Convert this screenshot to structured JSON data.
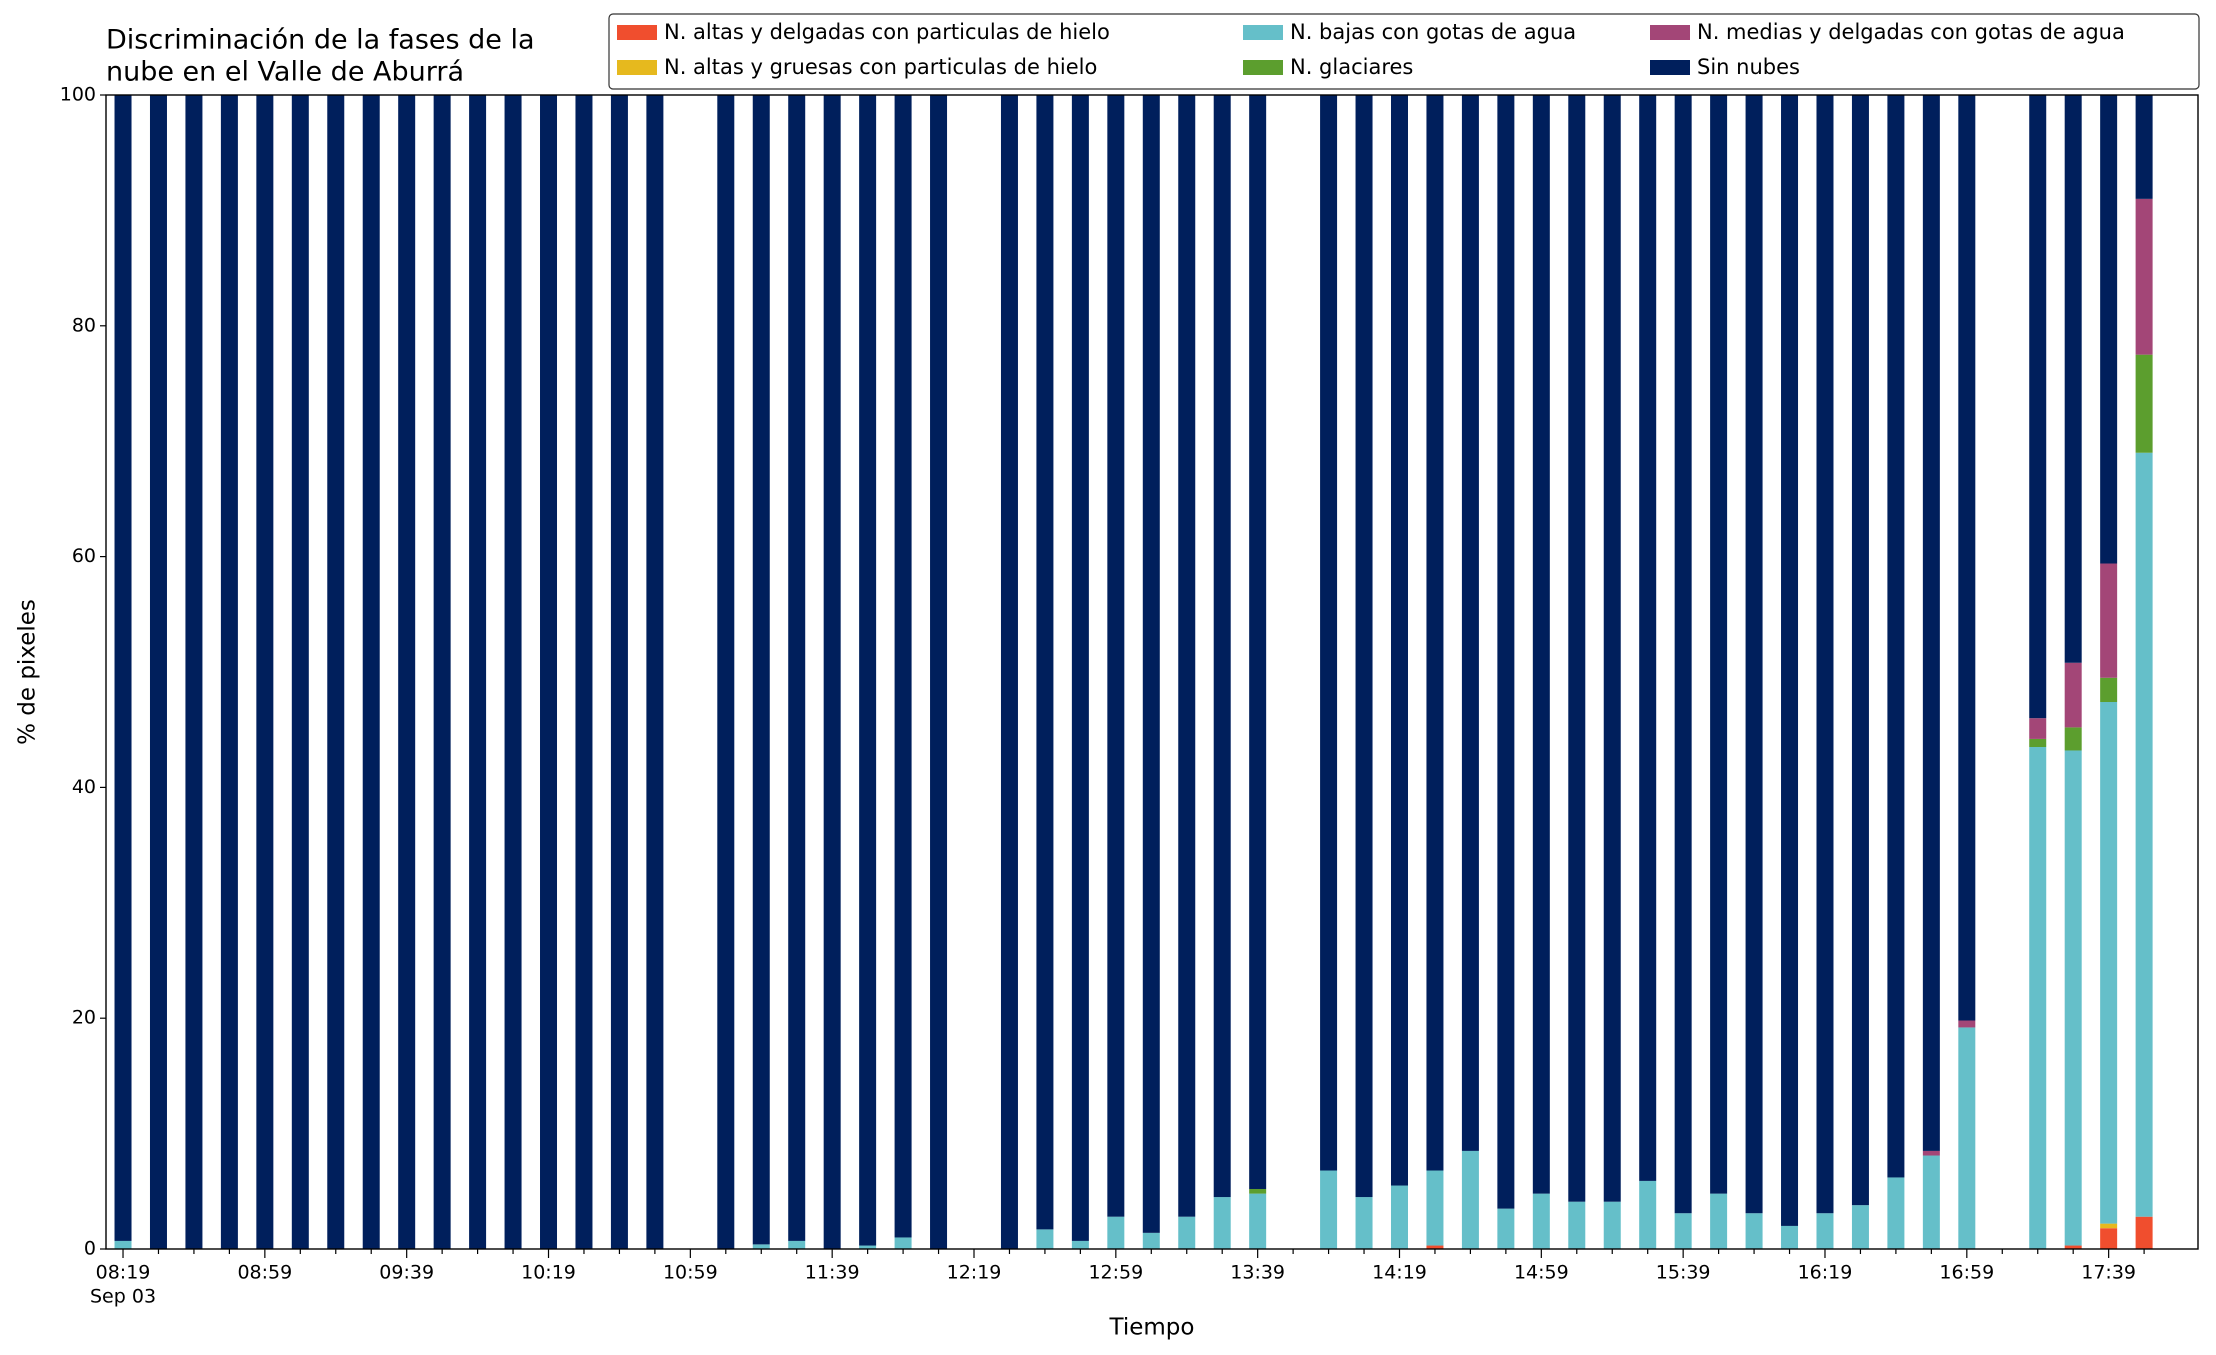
{
  "chart_data": {
    "type": "stacked_bar",
    "title": [
      "Discriminación de la fases de la",
      "nube en el Valle de Aburrá"
    ],
    "xlabel": "Tiempo",
    "ylabel": "% de pixeles",
    "date_label": "Sep 03",
    "categories": [
      "08:19",
      null,
      null,
      null,
      "08:59",
      null,
      null,
      null,
      "09:39",
      null,
      null,
      null,
      "10:19",
      null,
      null,
      null,
      "10:59",
      null,
      null,
      null,
      "11:39",
      null,
      null,
      null,
      "12:19",
      null,
      null,
      null,
      "12:59",
      null,
      null,
      null,
      "13:39",
      null,
      null,
      null,
      "14:19",
      null,
      null,
      null,
      "14:59",
      null,
      null,
      null,
      "15:39",
      null,
      null,
      null,
      "16:19",
      null,
      null,
      null,
      "16:59",
      null,
      null,
      null,
      "17:39",
      null
    ],
    "ylim": [
      0,
      100
    ],
    "yticks": [
      0,
      20,
      40,
      60,
      80,
      100
    ],
    "grid": false,
    "legend": "top-right",
    "legend_columns": 3,
    "series": [
      {
        "name": "N. altas y delgadas con particulas de hielo",
        "color": "#f04e2e",
        "values": [
          0,
          0,
          0,
          0,
          0,
          0,
          0,
          0,
          0,
          0,
          0,
          0,
          0,
          0,
          0,
          0,
          null,
          0,
          0,
          0,
          0,
          0,
          0,
          0,
          null,
          0,
          0,
          0,
          0,
          0,
          0,
          0,
          0,
          null,
          0,
          0,
          0,
          0.3,
          0,
          0,
          0,
          0,
          0,
          0,
          0,
          0,
          0,
          0,
          0,
          0,
          0,
          0,
          0,
          null,
          0,
          0.3,
          1.8,
          2.8
        ]
      },
      {
        "name": "N. altas y gruesas con particulas de hielo",
        "color": "#e6b91e",
        "values": [
          0,
          0,
          0,
          0,
          0,
          0,
          0,
          0,
          0,
          0,
          0,
          0,
          0,
          0,
          0,
          0,
          null,
          0,
          0,
          0,
          0,
          0,
          0,
          0,
          null,
          0,
          0,
          0,
          0,
          0,
          0,
          0,
          0,
          null,
          0,
          0,
          0,
          0,
          0,
          0,
          0,
          0,
          0,
          0,
          0,
          0,
          0,
          0,
          0,
          0,
          0,
          0,
          0,
          null,
          0,
          0,
          0.4,
          0
        ]
      },
      {
        "name": "N. bajas con gotas de agua",
        "color": "#65bfc9",
        "values": [
          0.7,
          0,
          0,
          0,
          0,
          0,
          0,
          0,
          0,
          0,
          0,
          0,
          0,
          0,
          0,
          0,
          null,
          0,
          0.4,
          0.7,
          0,
          0.3,
          1.0,
          0,
          null,
          0,
          1.7,
          0.7,
          2.8,
          1.4,
          2.8,
          4.5,
          4.8,
          null,
          6.8,
          4.5,
          5.5,
          6.5,
          8.5,
          3.5,
          4.8,
          4.1,
          4.1,
          5.9,
          3.1,
          4.8,
          3.1,
          2.0,
          3.1,
          3.8,
          6.2,
          8.1,
          19.2,
          null,
          43.5,
          42.9,
          45.2,
          66.2
        ]
      },
      {
        "name": "N. glaciares",
        "color": "#5c9e2e",
        "values": [
          0,
          0,
          0,
          0,
          0,
          0,
          0,
          0,
          0,
          0,
          0,
          0,
          0,
          0,
          0,
          0,
          null,
          0,
          0,
          0,
          0,
          0,
          0,
          0,
          null,
          0,
          0,
          0,
          0,
          0,
          0,
          0,
          0.4,
          null,
          0,
          0,
          0,
          0,
          0,
          0,
          0,
          0,
          0,
          0,
          0,
          0,
          0,
          0,
          0,
          0,
          0,
          0,
          0,
          null,
          0.7,
          2,
          2.1,
          8.5
        ]
      },
      {
        "name": "N. medias y delgadas con gotas de agua",
        "color": "#a34677",
        "values": [
          0,
          0,
          0,
          0,
          0,
          0,
          0,
          0,
          0,
          0,
          0,
          0,
          0,
          0,
          0,
          0,
          null,
          0,
          0,
          0,
          0,
          0,
          0,
          0,
          null,
          0,
          0,
          0,
          0,
          0,
          0,
          0,
          0,
          null,
          0,
          0,
          0,
          0,
          0,
          0,
          0,
          0,
          0,
          0,
          0,
          0,
          0,
          0,
          0,
          0,
          0,
          0.4,
          0.6,
          null,
          1.8,
          5.6,
          9.9,
          13.5
        ]
      },
      {
        "name": "Sin nubes",
        "color": "#001f5c",
        "values": [
          99.3,
          100,
          100,
          100,
          100,
          100,
          100,
          100,
          100,
          100,
          100,
          100,
          100,
          100,
          100,
          100,
          null,
          100,
          99.6,
          99.3,
          100,
          99.7,
          99.0,
          100,
          null,
          100,
          98.3,
          99.3,
          97.2,
          98.6,
          97.2,
          95.5,
          94.8,
          null,
          93.2,
          95.5,
          94.5,
          93.2,
          91.5,
          96.5,
          95.2,
          95.9,
          95.9,
          94.1,
          96.9,
          95.2,
          96.9,
          98.0,
          96.9,
          96.2,
          93.8,
          91.5,
          80.2,
          null,
          54.0,
          49.2,
          40.6,
          9.0
        ]
      }
    ]
  }
}
